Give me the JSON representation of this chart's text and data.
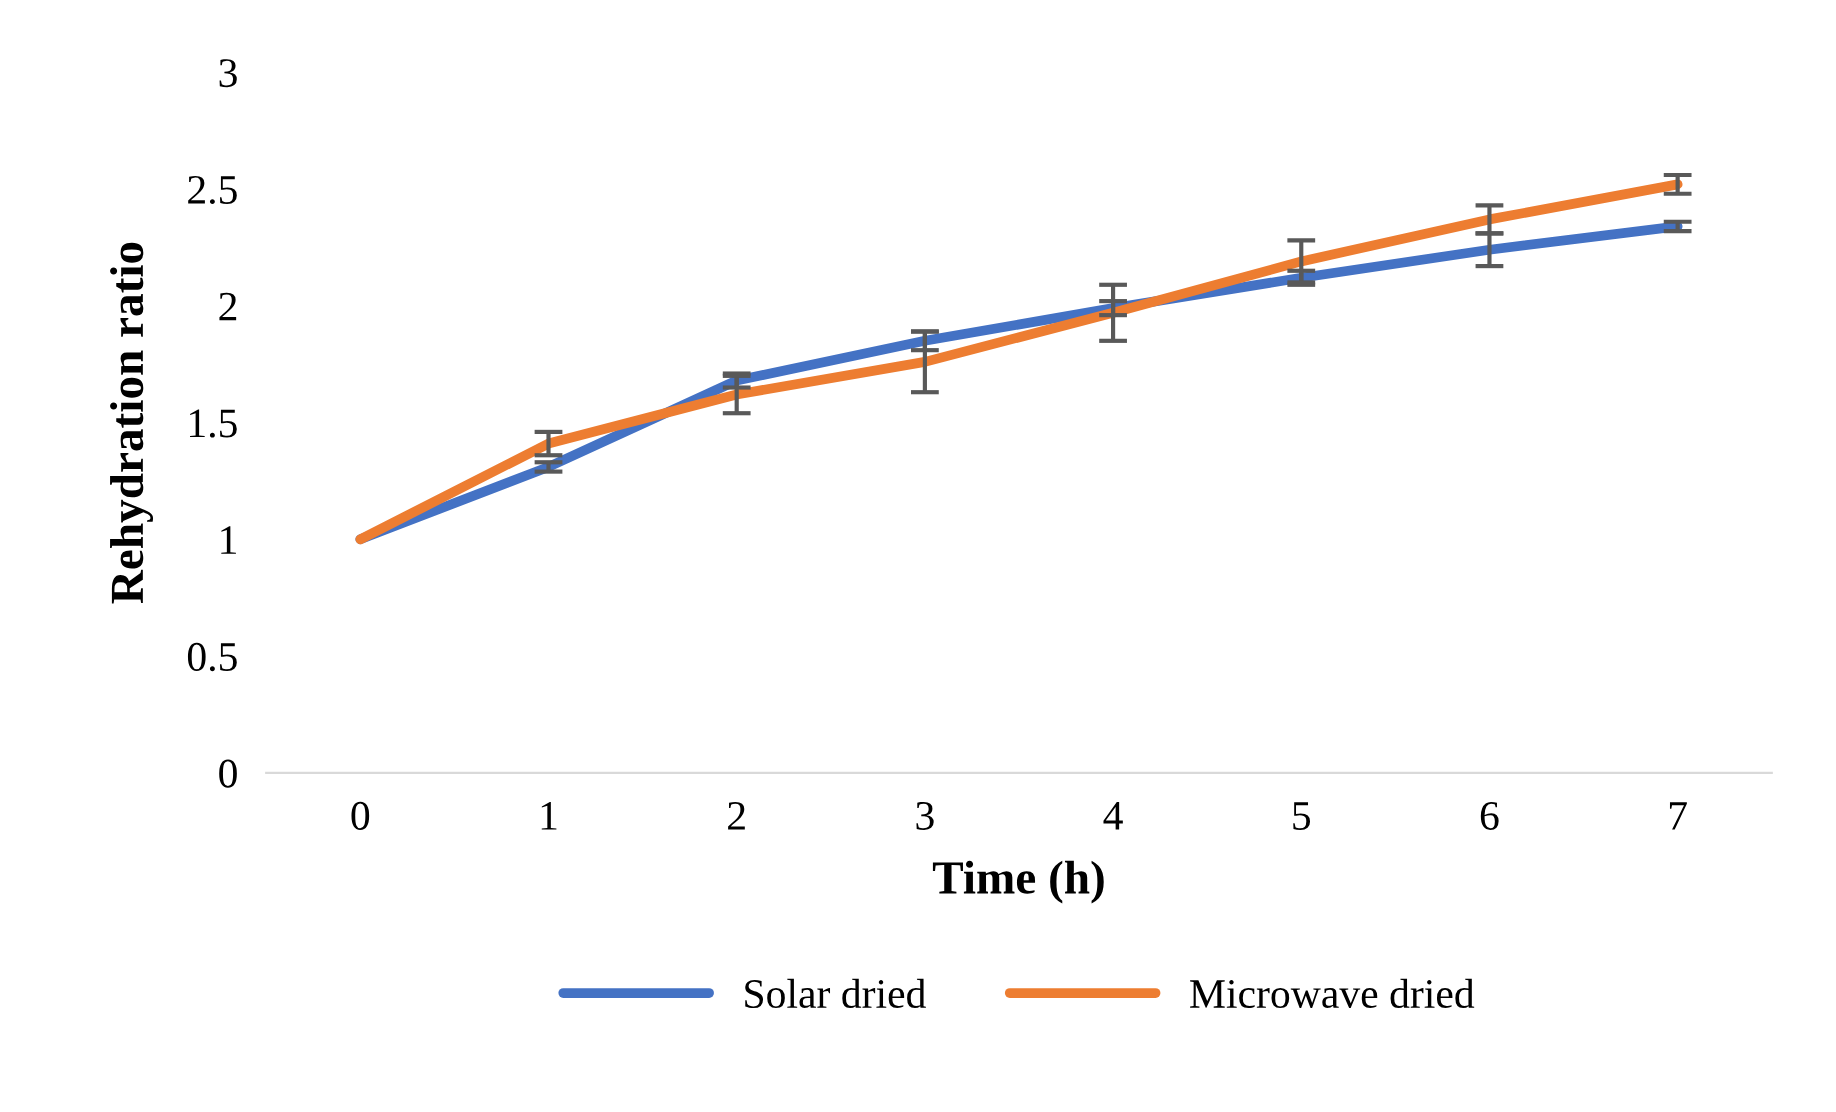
{
  "chart_data": {
    "type": "line",
    "xlabel": "Time (h)",
    "ylabel": "Rehydration ratio",
    "categories": [
      "0",
      "1",
      "2",
      "3",
      "4",
      "5",
      "6",
      "7"
    ],
    "ylim": [
      0,
      3
    ],
    "yticks": [
      0,
      0.5,
      1,
      1.5,
      2,
      2.5,
      3
    ],
    "grid": false,
    "legend": "bottom",
    "marker": "none",
    "line_style": "solid",
    "series": [
      {
        "name": "Solar dried",
        "color": "#4472c4",
        "values": [
          1.0,
          1.31,
          1.68,
          1.85,
          1.99,
          2.12,
          2.24,
          2.34
        ],
        "errors": [
          null,
          0.02,
          0.03,
          0.04,
          0.03,
          0.03,
          0.07,
          0.02
        ]
      },
      {
        "name": "Microwave dried",
        "color": "#ed7d31",
        "values": [
          1.0,
          1.41,
          1.62,
          1.76,
          1.97,
          2.19,
          2.37,
          2.52
        ],
        "errors": [
          null,
          0.05,
          0.08,
          0.13,
          0.12,
          0.09,
          0.06,
          0.04
        ]
      }
    ]
  }
}
